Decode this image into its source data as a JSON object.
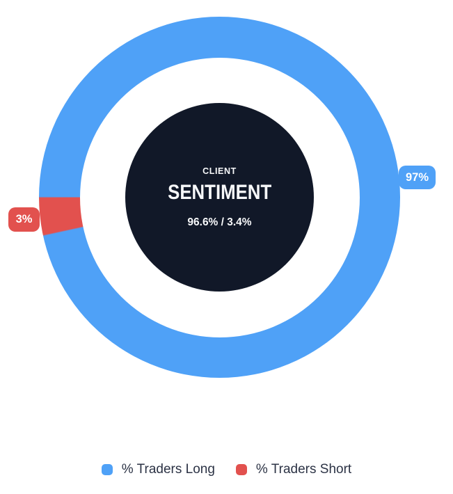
{
  "chart_data": {
    "type": "pie",
    "subtype": "donut",
    "title": "CLIENT SENTIMENT",
    "series": [
      {
        "name": "% Traders Long",
        "value": 96.6,
        "data_label": "97%",
        "color": "#4FA1F7"
      },
      {
        "name": "% Traders Short",
        "value": 3.4,
        "data_label": "3%",
        "color": "#E2514E"
      }
    ],
    "start_angle_deg": 270,
    "direction": "clockwise",
    "legend_position": "bottom",
    "center_annotation": "CLIENT SENTIMENT 96.6% / 3.4%"
  },
  "center": {
    "title_small": "CLIENT",
    "title_large": "SENTIMENT",
    "ratio": "96.6% / 3.4%"
  },
  "badges": {
    "long": "97%",
    "short": "3%"
  },
  "legend": {
    "items": [
      {
        "label": "% Traders Long",
        "color": "#4FA1F7"
      },
      {
        "label": "% Traders Short",
        "color": "#E2514E"
      }
    ]
  },
  "colors": {
    "long": "#4FA1F7",
    "short": "#E2514E",
    "center_disc": "#111828",
    "background": "#FFFFFF",
    "badge_text": "#FFFFFF",
    "center_text": "#F7F8FA",
    "legend_text": "#2C3345"
  }
}
